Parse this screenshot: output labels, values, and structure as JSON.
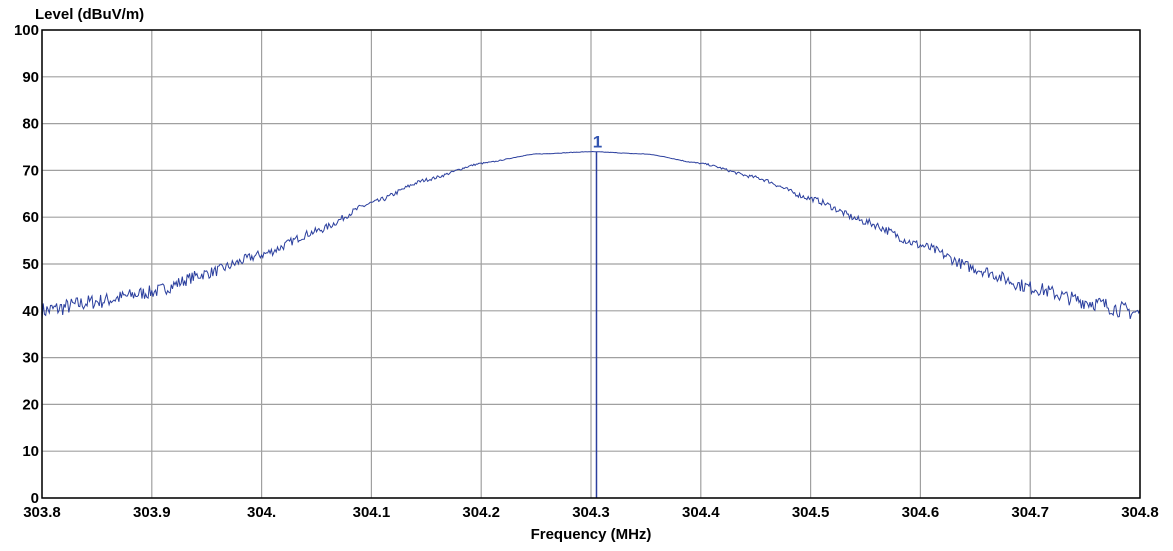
{
  "chart_data": {
    "type": "line",
    "title": "",
    "xlabel": "Frequency (MHz)",
    "ylabel": "Level (dBuV/m)",
    "xlim": [
      303.8,
      304.8
    ],
    "ylim": [
      0,
      100
    ],
    "grid": true,
    "x_ticks": [
      "303.8",
      "303.9",
      "304.",
      "304.1",
      "304.2",
      "304.3",
      "304.4",
      "304.5",
      "304.6",
      "304.7",
      "304.8"
    ],
    "x_tick_values": [
      303.8,
      303.9,
      304.0,
      304.1,
      304.2,
      304.3,
      304.4,
      304.5,
      304.6,
      304.7,
      304.8
    ],
    "y_ticks": [
      "0",
      "10",
      "20",
      "30",
      "40",
      "50",
      "60",
      "70",
      "80",
      "90",
      "100"
    ],
    "y_tick_values": [
      0,
      10,
      20,
      30,
      40,
      50,
      60,
      70,
      80,
      90,
      100
    ],
    "series": [
      {
        "color": "#2b3f9e",
        "x": [
          303.8,
          303.85,
          303.9,
          303.95,
          304.0,
          304.05,
          304.1,
          304.15,
          304.2,
          304.25,
          304.3,
          304.35,
          304.4,
          304.45,
          304.5,
          304.55,
          304.6,
          304.65,
          304.7,
          304.75,
          304.8
        ],
        "values": [
          40,
          42,
          44,
          48,
          52,
          57,
          63,
          68,
          71.5,
          73.5,
          74,
          73.5,
          71.5,
          68.5,
          64,
          59,
          54,
          49,
          45,
          42,
          39.5
        ]
      }
    ],
    "markers": [
      {
        "label": "1",
        "x": 304.305,
        "y": 74
      }
    ]
  }
}
